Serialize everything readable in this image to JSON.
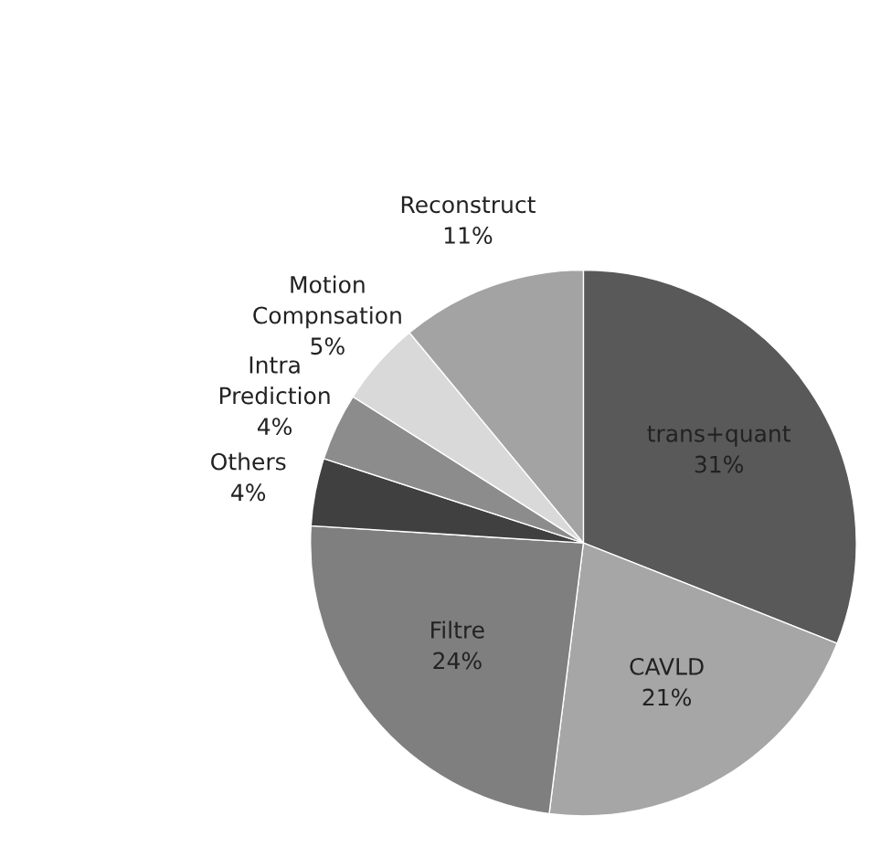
{
  "chart_data": {
    "type": "pie",
    "categories": [
      "trans+quant",
      "CAVLD",
      "Filtre",
      "Others",
      "Intra\nPrediction",
      "Motion\nCompnsation",
      "Reconstruct"
    ],
    "values": [
      31,
      21,
      24,
      4,
      4,
      5,
      11
    ],
    "value_labels": [
      "31%",
      "21%",
      "24%",
      "4%",
      "4%",
      "5%",
      "11%"
    ],
    "colors": [
      "#595959",
      "#a6a6a6",
      "#7f7f7f",
      "#404040",
      "#8c8c8c",
      "#d9d9d9",
      "#a3a3a3"
    ]
  }
}
